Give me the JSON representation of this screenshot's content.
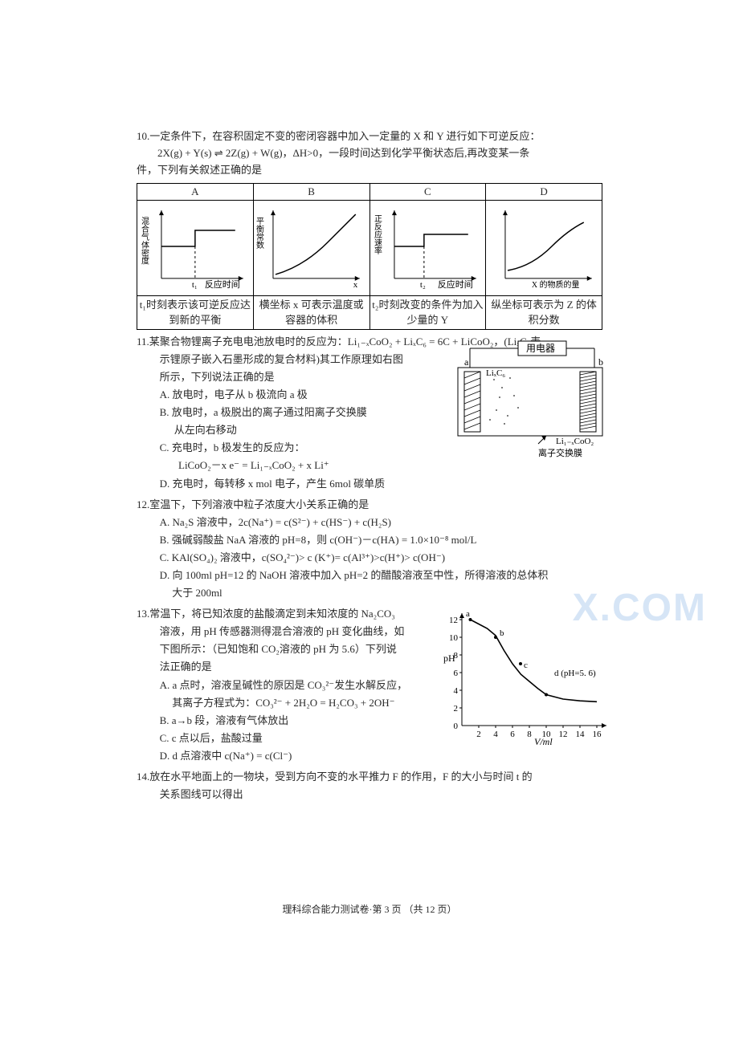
{
  "q10": {
    "line1": "10.一定条件下，在容积固定不变的密闭容器中加入一定量的 X 和 Y 进行如下可逆反应：",
    "line2": "2X(g) + Y(s) ⇌ 2Z(g) + W(g)，ΔH>0，一段时间达到化学平衡状态后,再改变某一条",
    "line3": "件，下列有关叙述正确的是",
    "headers": [
      "A",
      "B",
      "C",
      "D"
    ],
    "captions": [
      "t₁时刻表示该可逆反应达到新的平衡",
      "横坐标 x 可表示温度或容器的体积",
      "t₂时刻改变的条件为加入少量的 Y",
      "纵坐标可表示为 Z 的体积分数"
    ],
    "axis_labels": {
      "A_y": "混合气体密度",
      "A_x": "反应时间",
      "A_t": "t₁",
      "B_y": "平衡常数",
      "B_x": "x",
      "C_y": "正反应速率",
      "C_x": "反应时间",
      "C_t": "t₂",
      "D_x": "X 的物质的量"
    }
  },
  "q11": {
    "stem1": "11.某聚合物锂离子充电电池放电时的反应为：Li₁₋ₓCoO₂ + LiₓC₆ = 6C + LiCoO₂，(LiₓC₆表",
    "stem2": "示锂原子嵌入石墨形成的复合材料)其工作原理如右图",
    "stem3": "所示，下列说法正确的是",
    "A": "A. 放电时，电子从 b 极流向 a 极",
    "B1": "B. 放电时，a 极脱出的离子通过阳离子交换膜",
    "B2": "从左向右移动",
    "C1": "C. 充电时，b 极发生的反应为：",
    "C2": "LiCoO₂－x e⁻ = Li₁₋ₓCoO₂ + x Li⁺",
    "D": "D. 充电时，每转移 x mol 电子，产生 6mol 碳单质",
    "diagram": {
      "device": "用电器",
      "left_label": "LiₓC₆",
      "right_label": "Li₁₋ₓCoO₂",
      "membrane": "离子交换膜",
      "a": "a",
      "b": "b"
    }
  },
  "q12": {
    "stem": "12.室温下，下列溶液中粒子浓度大小关系正确的是",
    "A": "A. Na₂S 溶液中，2c(Na⁺) = c(S²⁻) + c(HS⁻) + c(H₂S)",
    "B": "B. 强碱弱酸盐 NaA 溶液的 pH=8，则 c(OH⁻)－c(HA) = 1.0×10⁻⁸ mol/L",
    "C": "C. KAl(SO₄)₂ 溶液中，c(SO₄²⁻)> c (K⁺)= c(Al³⁺)>c(H⁺)> c(OH⁻)",
    "D1": "D. 向 100ml pH=12 的 NaOH 溶液中加入 pH=2 的醋酸溶液至中性，所得溶液的总体积",
    "D2": "大于 200ml"
  },
  "q13": {
    "stem1": "13.常温下，将已知浓度的盐酸滴定到未知浓度的 Na₂CO₃",
    "stem2": "溶液，用 pH 传感器测得混合溶液的 pH 变化曲线，如",
    "stem3": "下图所示：（已知饱和 CO₂溶液的 pH 为 5.6）下列说",
    "stem4": "法正确的是",
    "A1": "A. a 点时，溶液呈碱性的原因是 CO₃²⁻发生水解反应，",
    "A2": "其离子方程式为：CO₃²⁻ + 2H₂O = H₂CO₃ + 2OH⁻",
    "B": "B. a→b 段，溶液有气体放出",
    "C": "C. c 点以后，盐酸过量",
    "D": "D. d 点溶液中 c(Na⁺) = c(Cl⁻)",
    "graph": {
      "y_label": "pH",
      "x_label": "V/ml",
      "y_ticks": [
        "0",
        "2",
        "4",
        "6",
        "8",
        "10",
        "12"
      ],
      "x_ticks": [
        "2",
        "4",
        "6",
        "8",
        "10",
        "12",
        "14",
        "16"
      ],
      "pt_a": "a",
      "pt_b": "b",
      "pt_c": "c",
      "pt_d": "d",
      "d_label": "d (pH=5. 6)",
      "curve_points": [
        [
          1,
          12
        ],
        [
          2,
          11.5
        ],
        [
          3,
          11
        ],
        [
          4,
          10.2
        ],
        [
          5,
          8.5
        ],
        [
          6,
          7
        ],
        [
          7,
          5.8
        ],
        [
          8,
          5
        ],
        [
          9,
          4.2
        ],
        [
          10,
          3.5
        ],
        [
          12,
          3
        ],
        [
          14,
          2.8
        ],
        [
          16,
          2.7
        ]
      ],
      "colors": {
        "axis": "#000000",
        "curve": "#000000"
      }
    }
  },
  "q14": {
    "stem1": "14.放在水平地面上的一物块，受到方向不变的水平推力 F 的作用，F 的大小与时间 t 的",
    "stem2": "关系图线可以得出"
  },
  "footer": "理科综合能力测试卷·第 3 页 （共 12 页）",
  "watermark": "X.COM"
}
